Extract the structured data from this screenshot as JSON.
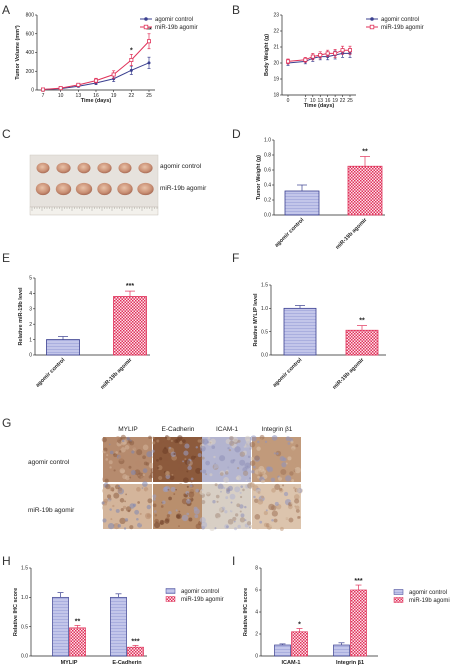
{
  "panels": {
    "A": "A",
    "B": "B",
    "C": "C",
    "D": "D",
    "E": "E",
    "F": "F",
    "G": "G",
    "H": "H",
    "I": "I"
  },
  "colors": {
    "control": "#3a3f8f",
    "agomir": "#e0325a",
    "control_fill": "#b9bde6",
    "agomir_fill": "#f7cdd8"
  },
  "photo_c": {
    "label_top": "agomir control",
    "label_bottom": "miR-19b agomir"
  },
  "ihc": {
    "columns": [
      "MYLIP",
      "E-Cadherin",
      "ICAM-1",
      "Integrin β1"
    ],
    "rows": [
      "agomir control",
      "miR-19b agomir"
    ]
  },
  "chart_data": [
    {
      "panel": "A",
      "type": "line",
      "xlabel": "Time (days)",
      "ylabel": "Tumor Volume (mm³)",
      "x": [
        7,
        10,
        13,
        16,
        19,
        22,
        25
      ],
      "xticks": [
        "7",
        "10",
        "13",
        "16",
        "19",
        "22",
        "25"
      ],
      "ylim": [
        0,
        800
      ],
      "yticks": [
        "0",
        "200",
        "400",
        "600",
        "800"
      ],
      "series": [
        {
          "name": "agomir control",
          "values": [
            5,
            15,
            40,
            75,
            120,
            210,
            290
          ],
          "errors": [
            3,
            6,
            10,
            18,
            30,
            45,
            60
          ]
        },
        {
          "name": "miR-19b agomir",
          "values": [
            5,
            20,
            55,
            100,
            165,
            320,
            520
          ],
          "errors": [
            3,
            8,
            15,
            25,
            40,
            60,
            80
          ]
        }
      ],
      "annotations": [
        {
          "x": 22,
          "text": "*"
        },
        {
          "x": 25,
          "text": "**"
        }
      ],
      "legend": "top-right"
    },
    {
      "panel": "B",
      "type": "line",
      "xlabel": "Time (days)",
      "ylabel": "Body Weight (g)",
      "x": [
        0,
        7,
        10,
        13,
        16,
        19,
        22,
        25
      ],
      "xticks": [
        "0",
        "7",
        "10",
        "13",
        "16",
        "19",
        "22",
        "25"
      ],
      "ylim": [
        18,
        23
      ],
      "yticks": [
        "18",
        "19",
        "20",
        "21",
        "22",
        "23"
      ],
      "series": [
        {
          "name": "agomir control",
          "values": [
            20.0,
            20.1,
            20.3,
            20.4,
            20.4,
            20.5,
            20.6,
            20.6
          ],
          "errors": [
            0.15,
            0.15,
            0.2,
            0.2,
            0.2,
            0.25,
            0.25,
            0.25
          ]
        },
        {
          "name": "miR-19b agomir",
          "values": [
            20.1,
            20.2,
            20.4,
            20.5,
            20.6,
            20.6,
            20.8,
            20.8
          ],
          "errors": [
            0.15,
            0.15,
            0.2,
            0.2,
            0.2,
            0.25,
            0.25,
            0.25
          ]
        }
      ],
      "legend": "top-right"
    },
    {
      "panel": "D",
      "type": "bar",
      "ylabel": "Tumor Weight (g)",
      "categories": [
        "agomir control",
        "miR-19b agomir"
      ],
      "values": [
        0.32,
        0.65
      ],
      "errors": [
        0.08,
        0.13
      ],
      "ylim": [
        0,
        1.0
      ],
      "yticks": [
        "0.0",
        "0.2",
        "0.4",
        "0.6",
        "0.8",
        "1.0"
      ],
      "annotations": [
        {
          "category": 1,
          "text": "**"
        }
      ]
    },
    {
      "panel": "E",
      "type": "bar",
      "ylabel": "Relative miR-19b level",
      "categories": [
        "agomir control",
        "miR-19b agomir"
      ],
      "values": [
        1.0,
        3.8
      ],
      "errors": [
        0.2,
        0.35
      ],
      "ylim": [
        0,
        5
      ],
      "yticks": [
        "0",
        "1",
        "2",
        "3",
        "4",
        "5"
      ],
      "annotations": [
        {
          "category": 1,
          "text": "***"
        }
      ]
    },
    {
      "panel": "F",
      "type": "bar",
      "ylabel": "Relative MYLIP level",
      "categories": [
        "agomir control",
        "miR-19b agomir"
      ],
      "values": [
        1.0,
        0.53
      ],
      "errors": [
        0.06,
        0.1
      ],
      "ylim": [
        0,
        1.5
      ],
      "yticks": [
        "0.0",
        "0.5",
        "1.0",
        "1.5"
      ],
      "annotations": [
        {
          "category": 1,
          "text": "**"
        }
      ]
    },
    {
      "panel": "H",
      "type": "bar",
      "ylabel": "Relative IHC score",
      "categories": [
        "MYLIP",
        "E-Cadherin"
      ],
      "series": [
        {
          "name": "agomir control",
          "values": [
            1.0,
            1.0
          ],
          "errors": [
            0.08,
            0.06
          ]
        },
        {
          "name": "miR-19b agomir",
          "values": [
            0.48,
            0.15
          ],
          "errors": [
            0.04,
            0.03
          ]
        }
      ],
      "ylim": [
        0,
        1.5
      ],
      "yticks": [
        "0.0",
        "0.5",
        "1.0",
        "1.5"
      ],
      "annotations": [
        {
          "category": 0,
          "text": "**"
        },
        {
          "category": 1,
          "text": "***"
        }
      ],
      "legend": "top-right"
    },
    {
      "panel": "I",
      "type": "bar",
      "ylabel": "Relative IHC score",
      "categories": [
        "ICAM-1",
        "Integrin β1"
      ],
      "series": [
        {
          "name": "agomir control",
          "values": [
            1.0,
            1.0
          ],
          "errors": [
            0.1,
            0.2
          ]
        },
        {
          "name": "miR-19b agomir",
          "values": [
            2.2,
            6.0
          ],
          "errors": [
            0.3,
            0.45
          ]
        }
      ],
      "ylim": [
        0,
        8
      ],
      "yticks": [
        "0",
        "2",
        "4",
        "6",
        "8"
      ],
      "annotations": [
        {
          "category": 0,
          "text": "*"
        },
        {
          "category": 1,
          "text": "***"
        }
      ],
      "legend": "top-right"
    }
  ]
}
